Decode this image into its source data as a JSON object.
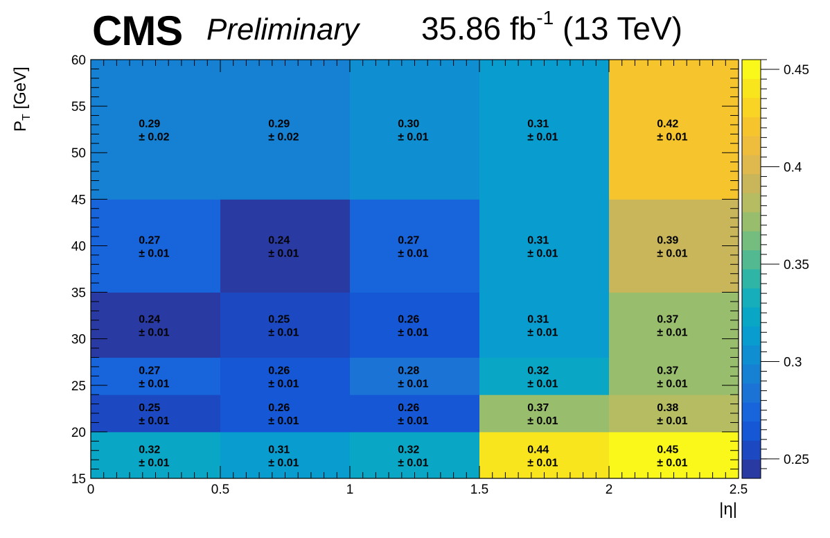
{
  "header": {
    "cms": "CMS",
    "preliminary": "Preliminary",
    "lumi_value": "35.86 fb",
    "lumi_exp": "-1",
    "energy": "(13 TeV)"
  },
  "axes": {
    "xlabel": "|η|",
    "ylabel_main": "P",
    "ylabel_sub": "T",
    "ylabel_unit": " [GeV]"
  },
  "chart_data": {
    "type": "heatmap",
    "title": "",
    "xlabel": "|η|",
    "ylabel": "P_T [GeV]",
    "x_edges": [
      0,
      0.5,
      1,
      1.5,
      2,
      2.5
    ],
    "y_edges": [
      15,
      20,
      24,
      28,
      35,
      45,
      60
    ],
    "xlim": [
      0,
      2.5
    ],
    "ylim": [
      15,
      60
    ],
    "x_ticks": [
      "0",
      "0.5",
      "1",
      "1.5",
      "2",
      "2.5"
    ],
    "y_ticks": [
      "15",
      "20",
      "25",
      "30",
      "35",
      "40",
      "45",
      "50",
      "55",
      "60"
    ],
    "values": [
      [
        0.32,
        0.31,
        0.32,
        0.44,
        0.45
      ],
      [
        0.25,
        0.26,
        0.26,
        0.37,
        0.38
      ],
      [
        0.27,
        0.26,
        0.28,
        0.32,
        0.37
      ],
      [
        0.24,
        0.25,
        0.26,
        0.31,
        0.37
      ],
      [
        0.27,
        0.24,
        0.27,
        0.31,
        0.39
      ],
      [
        0.29,
        0.29,
        0.3,
        0.31,
        0.42
      ]
    ],
    "errors": [
      [
        0.01,
        0.01,
        0.01,
        0.01,
        0.01
      ],
      [
        0.01,
        0.01,
        0.01,
        0.01,
        0.01
      ],
      [
        0.01,
        0.01,
        0.01,
        0.01,
        0.01
      ],
      [
        0.01,
        0.01,
        0.01,
        0.01,
        0.01
      ],
      [
        0.01,
        0.01,
        0.01,
        0.01,
        0.01
      ],
      [
        0.02,
        0.02,
        0.01,
        0.01,
        0.01
      ]
    ],
    "value_labels": [
      [
        "0.32",
        "0.31",
        "0.32",
        "0.44",
        "0.45"
      ],
      [
        "0.25",
        "0.26",
        "0.26",
        "0.37",
        "0.38"
      ],
      [
        "0.27",
        "0.26",
        "0.28",
        "0.32",
        "0.37"
      ],
      [
        "0.24",
        "0.25",
        "0.26",
        "0.31",
        "0.37"
      ],
      [
        "0.27",
        "0.24",
        "0.27",
        "0.31",
        "0.39"
      ],
      [
        "0.29",
        "0.29",
        "0.30",
        "0.31",
        "0.42"
      ]
    ],
    "error_labels": [
      [
        "± 0.01",
        "± 0.01",
        "± 0.01",
        "± 0.01",
        "± 0.01"
      ],
      [
        "± 0.01",
        "± 0.01",
        "± 0.01",
        "± 0.01",
        "± 0.01"
      ],
      [
        "± 0.01",
        "± 0.01",
        "± 0.01",
        "± 0.01",
        "± 0.01"
      ],
      [
        "± 0.01",
        "± 0.01",
        "± 0.01",
        "± 0.01",
        "± 0.01"
      ],
      [
        "± 0.01",
        "± 0.01",
        "± 0.01",
        "± 0.01",
        "± 0.01"
      ],
      [
        "± 0.02",
        "± 0.02",
        "± 0.01",
        "± 0.01",
        "± 0.01"
      ]
    ],
    "z_range": [
      0.24,
      0.455
    ],
    "colorbar_ticks": [
      0.25,
      0.3,
      0.35,
      0.4,
      0.45
    ],
    "colorbar_tick_labels": [
      "0.25",
      "0.3",
      "0.35",
      "0.4",
      "0.45"
    ],
    "palette": [
      "#2a3aa3",
      "#1c49c2",
      "#1557d4",
      "#1764db",
      "#1b73d6",
      "#1681d2",
      "#0f8fd1",
      "#089ccf",
      "#0aa6c5",
      "#16aebb",
      "#2fb5a6",
      "#52b991",
      "#75bd7e",
      "#98bd6c",
      "#b5bc62",
      "#cab65a",
      "#dfb84e",
      "#eebd3d",
      "#f6c52d",
      "#f9d424",
      "#f9e51d",
      "#f9f81a"
    ],
    "legend": "none",
    "grid": false
  }
}
